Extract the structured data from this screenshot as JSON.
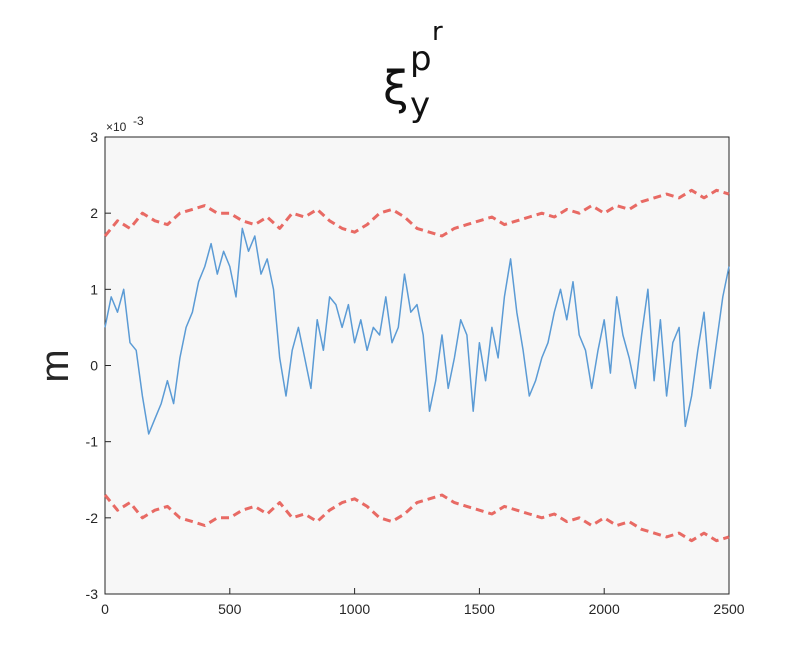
{
  "chart_data": {
    "type": "line",
    "title": {
      "main": "ξ",
      "superscript": "p",
      "superscript_sup": "r",
      "subscript": "y"
    },
    "xlabel": "",
    "ylabel": "m",
    "y_exponent_label": "×10",
    "y_exponent_value": "-3",
    "xlim": [
      0,
      2500
    ],
    "ylim": [
      -3,
      3
    ],
    "x_ticks": [
      "0",
      "500",
      "1000",
      "1500",
      "2000",
      "2500"
    ],
    "y_ticks": [
      "-3",
      "-2",
      "-1",
      "0",
      "1",
      "2",
      "3"
    ],
    "grid": false,
    "background": "#f7f7f7",
    "series": [
      {
        "style": "solid",
        "color": "#5b9bd5",
        "x": [
          0,
          25,
          50,
          75,
          100,
          125,
          150,
          175,
          200,
          225,
          250,
          275,
          300,
          325,
          350,
          375,
          400,
          425,
          450,
          475,
          500,
          525,
          550,
          575,
          600,
          625,
          650,
          675,
          700,
          725,
          750,
          775,
          800,
          825,
          850,
          875,
          900,
          925,
          950,
          975,
          1000,
          1025,
          1050,
          1075,
          1100,
          1125,
          1150,
          1175,
          1200,
          1225,
          1250,
          1275,
          1300,
          1325,
          1350,
          1375,
          1400,
          1425,
          1450,
          1475,
          1500,
          1525,
          1550,
          1575,
          1600,
          1625,
          1650,
          1675,
          1700,
          1725,
          1750,
          1775,
          1800,
          1825,
          1850,
          1875,
          1900,
          1925,
          1950,
          1975,
          2000,
          2025,
          2050,
          2075,
          2100,
          2125,
          2150,
          2175,
          2200,
          2225,
          2250,
          2275,
          2300,
          2325,
          2350,
          2375,
          2400,
          2425,
          2450,
          2475,
          2500
        ],
        "values": [
          0.5,
          0.9,
          0.7,
          1.0,
          0.3,
          0.2,
          -0.4,
          -0.9,
          -0.7,
          -0.5,
          -0.2,
          -0.5,
          0.1,
          0.5,
          0.7,
          1.1,
          1.3,
          1.6,
          1.2,
          1.5,
          1.3,
          0.9,
          1.8,
          1.5,
          1.7,
          1.2,
          1.4,
          1.0,
          0.1,
          -0.4,
          0.2,
          0.5,
          0.1,
          -0.3,
          0.6,
          0.2,
          0.9,
          0.8,
          0.5,
          0.8,
          0.3,
          0.6,
          0.2,
          0.5,
          0.4,
          0.9,
          0.3,
          0.5,
          1.2,
          0.7,
          0.8,
          0.4,
          -0.6,
          -0.2,
          0.4,
          -0.3,
          0.1,
          0.6,
          0.4,
          -0.6,
          0.3,
          -0.2,
          0.5,
          0.1,
          0.9,
          1.4,
          0.7,
          0.2,
          -0.4,
          -0.2,
          0.1,
          0.3,
          0.7,
          1.0,
          0.6,
          1.1,
          0.4,
          0.2,
          -0.3,
          0.2,
          0.6,
          -0.1,
          0.9,
          0.4,
          0.1,
          -0.3,
          0.4,
          1.0,
          -0.2,
          0.6,
          -0.4,
          0.3,
          0.5,
          -0.8,
          -0.4,
          0.2,
          0.7,
          -0.3,
          0.3,
          0.9,
          1.3
        ]
      },
      {
        "style": "dashed",
        "color": "#e86a64",
        "x": [
          0,
          50,
          100,
          150,
          200,
          250,
          300,
          350,
          400,
          450,
          500,
          550,
          600,
          650,
          700,
          750,
          800,
          850,
          900,
          950,
          1000,
          1050,
          1100,
          1150,
          1200,
          1250,
          1300,
          1350,
          1400,
          1450,
          1500,
          1550,
          1600,
          1650,
          1700,
          1750,
          1800,
          1850,
          1900,
          1950,
          2000,
          2050,
          2100,
          2150,
          2200,
          2250,
          2300,
          2350,
          2400,
          2450,
          2500
        ],
        "values": [
          1.7,
          1.9,
          1.8,
          2.0,
          1.9,
          1.85,
          2.0,
          2.05,
          2.1,
          2.0,
          2.0,
          1.9,
          1.85,
          1.95,
          1.8,
          2.0,
          1.95,
          2.05,
          1.9,
          1.8,
          1.75,
          1.85,
          2.0,
          2.05,
          1.95,
          1.8,
          1.75,
          1.7,
          1.8,
          1.85,
          1.9,
          1.95,
          1.85,
          1.9,
          1.95,
          2.0,
          1.95,
          2.05,
          2.0,
          2.1,
          2.0,
          2.1,
          2.05,
          2.15,
          2.2,
          2.25,
          2.2,
          2.3,
          2.2,
          2.3,
          2.25
        ]
      },
      {
        "style": "dashed",
        "color": "#e86a64",
        "x": [
          0,
          50,
          100,
          150,
          200,
          250,
          300,
          350,
          400,
          450,
          500,
          550,
          600,
          650,
          700,
          750,
          800,
          850,
          900,
          950,
          1000,
          1050,
          1100,
          1150,
          1200,
          1250,
          1300,
          1350,
          1400,
          1450,
          1500,
          1550,
          1600,
          1650,
          1700,
          1750,
          1800,
          1850,
          1900,
          1950,
          2000,
          2050,
          2100,
          2150,
          2200,
          2250,
          2300,
          2350,
          2400,
          2450,
          2500
        ],
        "values": [
          -1.7,
          -1.9,
          -1.8,
          -2.0,
          -1.9,
          -1.85,
          -2.0,
          -2.05,
          -2.1,
          -2.0,
          -2.0,
          -1.9,
          -1.85,
          -1.95,
          -1.8,
          -2.0,
          -1.95,
          -2.05,
          -1.9,
          -1.8,
          -1.75,
          -1.85,
          -2.0,
          -2.05,
          -1.95,
          -1.8,
          -1.75,
          -1.7,
          -1.8,
          -1.85,
          -1.9,
          -1.95,
          -1.85,
          -1.9,
          -1.95,
          -2.0,
          -1.95,
          -2.05,
          -2.0,
          -2.1,
          -2.0,
          -2.1,
          -2.05,
          -2.15,
          -2.2,
          -2.25,
          -2.2,
          -2.3,
          -2.2,
          -2.3,
          -2.25
        ]
      }
    ]
  }
}
